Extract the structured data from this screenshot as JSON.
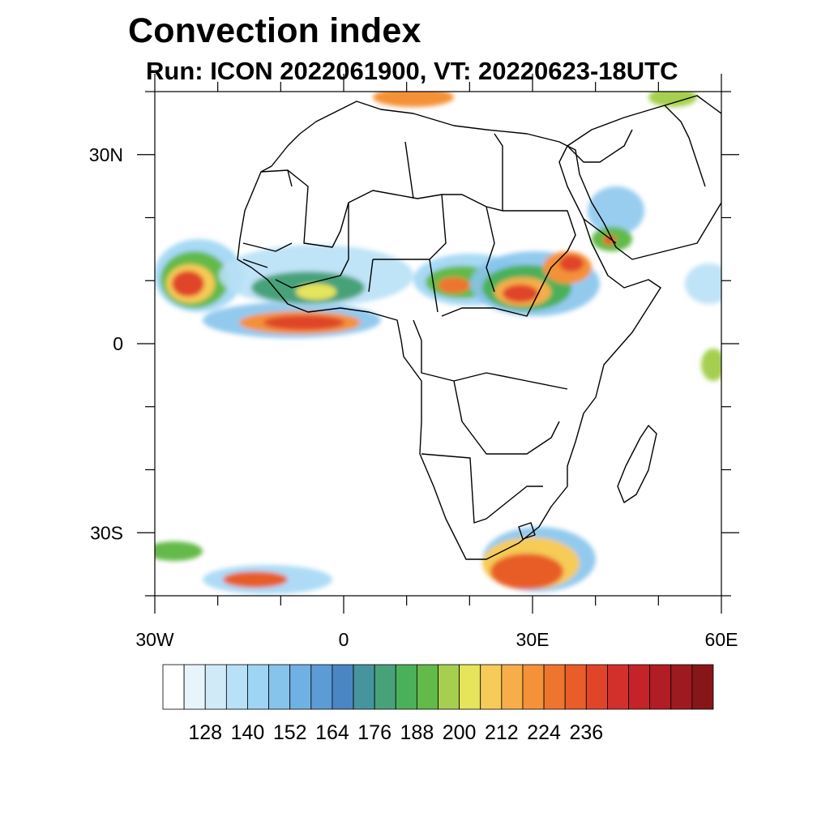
{
  "header": {
    "title": "Convection index",
    "subtitle": "Run: ICON 2022061900,  VT: 20220623-18UTC"
  },
  "map": {
    "lon_range": [
      -30,
      60
    ],
    "lat_range": [
      -40,
      40
    ],
    "lat_ticks": [
      {
        "value": 30,
        "label": "30N"
      },
      {
        "value": 0,
        "label": "0"
      },
      {
        "value": -30,
        "label": "30S"
      }
    ],
    "lon_ticks": [
      {
        "value": -30,
        "label": "30W"
      },
      {
        "value": 0,
        "label": "0"
      },
      {
        "value": 30,
        "label": "30E"
      },
      {
        "value": 60,
        "label": "60E"
      }
    ]
  },
  "colorbar": {
    "colors": [
      "#ffffff",
      "#e8f4fc",
      "#d0eaf8",
      "#b8e0f6",
      "#9fd5f4",
      "#86c4ec",
      "#70b1e4",
      "#5b9bd6",
      "#4a86c4",
      "#46959e",
      "#47a27a",
      "#4bb05a",
      "#64ba48",
      "#a6cf4f",
      "#e5e45a",
      "#f6cb57",
      "#f7ad4a",
      "#f49139",
      "#ee752e",
      "#e85d28",
      "#e04529",
      "#d4302b",
      "#c32329",
      "#b21c25",
      "#9d1a20",
      "#871618"
    ],
    "labels": [
      "128",
      "140",
      "152",
      "164",
      "176",
      "188",
      "200",
      "212",
      "224",
      "236"
    ]
  }
}
